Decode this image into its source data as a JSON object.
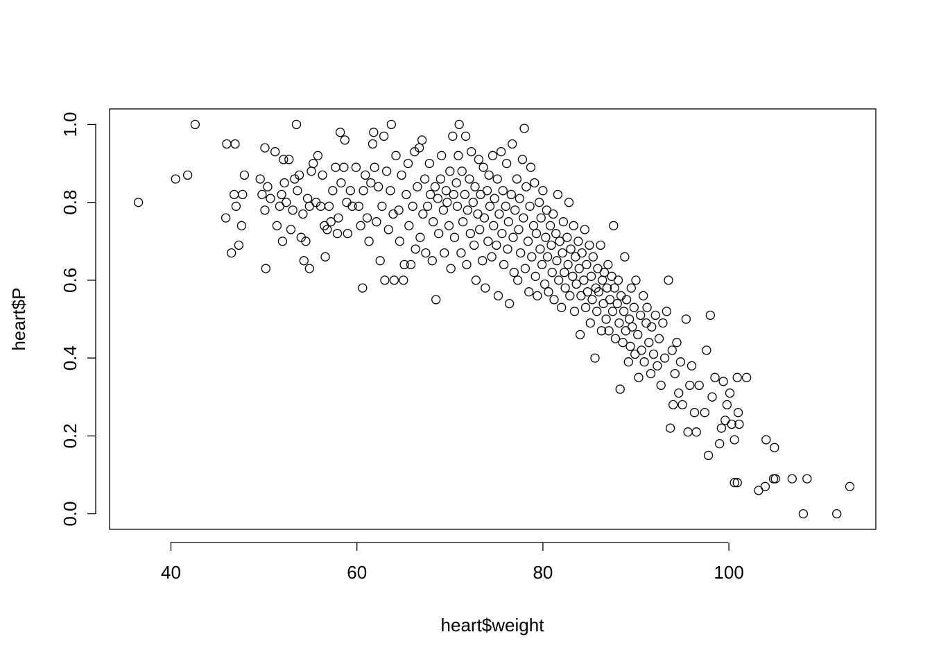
{
  "chart_data": {
    "type": "scatter",
    "title": "",
    "xlabel": "heart$weight",
    "ylabel": "heart$P",
    "xlim": [
      33.4,
      115.8
    ],
    "ylim": [
      -0.04,
      1.04
    ],
    "x_ticks": [
      40,
      60,
      80,
      100
    ],
    "y_ticks": [
      0.0,
      0.2,
      0.4,
      0.6,
      0.8,
      1.0
    ],
    "x_tick_labels": [
      "40",
      "60",
      "80",
      "100"
    ],
    "y_tick_labels": [
      "0.0",
      "0.2",
      "0.4",
      "0.6",
      "0.8",
      "1.0"
    ],
    "grid": false,
    "marker": "open-circle",
    "point_color": "#000000",
    "n_points_approx": 1000,
    "points": [
      [
        36.5,
        0.8
      ],
      [
        40.5,
        0.86
      ],
      [
        41.8,
        0.87
      ],
      [
        42.6,
        1.0
      ],
      [
        45.9,
        0.76
      ],
      [
        46.0,
        0.95
      ],
      [
        46.5,
        0.67
      ],
      [
        46.8,
        0.82
      ],
      [
        47.0,
        0.79
      ],
      [
        46.9,
        0.95
      ],
      [
        47.3,
        0.69
      ],
      [
        47.6,
        0.74
      ],
      [
        47.7,
        0.82
      ],
      [
        47.9,
        0.87
      ],
      [
        49.6,
        0.86
      ],
      [
        49.8,
        0.82
      ],
      [
        50.1,
        0.94
      ],
      [
        50.1,
        0.78
      ],
      [
        50.2,
        0.63
      ],
      [
        50.4,
        0.84
      ],
      [
        50.7,
        0.81
      ],
      [
        51.2,
        0.93
      ],
      [
        51.4,
        0.74
      ],
      [
        51.7,
        0.79
      ],
      [
        51.9,
        0.82
      ],
      [
        52.0,
        0.7
      ],
      [
        52.1,
        0.91
      ],
      [
        52.2,
        0.85
      ],
      [
        52.4,
        0.8
      ],
      [
        52.7,
        0.91
      ],
      [
        52.9,
        0.73
      ],
      [
        53.1,
        0.78
      ],
      [
        53.3,
        0.86
      ],
      [
        53.5,
        1.0
      ],
      [
        53.6,
        0.83
      ],
      [
        53.8,
        0.87
      ],
      [
        54.0,
        0.71
      ],
      [
        54.2,
        0.77
      ],
      [
        54.3,
        0.65
      ],
      [
        54.5,
        0.7
      ],
      [
        54.7,
        0.81
      ],
      [
        54.9,
        0.63
      ],
      [
        54.9,
        0.79
      ],
      [
        55.1,
        0.88
      ],
      [
        55.3,
        0.9
      ],
      [
        55.6,
        0.8
      ],
      [
        55.8,
        0.92
      ],
      [
        56.1,
        0.79
      ],
      [
        56.3,
        0.87
      ],
      [
        56.5,
        0.74
      ],
      [
        56.6,
        0.66
      ],
      [
        56.8,
        0.73
      ],
      [
        57.0,
        0.79
      ],
      [
        57.2,
        0.75
      ],
      [
        57.4,
        0.83
      ],
      [
        57.7,
        0.89
      ],
      [
        57.9,
        0.72
      ],
      [
        58.0,
        0.76
      ],
      [
        58.2,
        0.98
      ],
      [
        58.3,
        0.85
      ],
      [
        58.6,
        0.89
      ],
      [
        58.7,
        0.96
      ],
      [
        58.9,
        0.8
      ],
      [
        59.0,
        0.72
      ],
      [
        59.3,
        0.83
      ],
      [
        59.5,
        0.79
      ],
      [
        59.9,
        0.89
      ],
      [
        60.2,
        0.79
      ],
      [
        60.4,
        0.74
      ],
      [
        60.6,
        0.58
      ],
      [
        60.7,
        0.83
      ],
      [
        60.9,
        0.87
      ],
      [
        61.1,
        0.76
      ],
      [
        61.3,
        0.7
      ],
      [
        61.5,
        0.85
      ],
      [
        61.7,
        0.95
      ],
      [
        61.8,
        0.98
      ],
      [
        61.9,
        0.89
      ],
      [
        62.1,
        0.75
      ],
      [
        62.3,
        0.84
      ],
      [
        62.5,
        0.65
      ],
      [
        62.7,
        0.79
      ],
      [
        62.9,
        0.97
      ],
      [
        63.0,
        0.6
      ],
      [
        63.2,
        0.88
      ],
      [
        63.4,
        0.73
      ],
      [
        63.6,
        0.83
      ],
      [
        63.7,
        1.0
      ],
      [
        63.9,
        0.77
      ],
      [
        64.0,
        0.6
      ],
      [
        64.2,
        0.92
      ],
      [
        64.5,
        0.78
      ],
      [
        64.6,
        0.7
      ],
      [
        64.8,
        0.87
      ],
      [
        65.0,
        0.6
      ],
      [
        65.1,
        0.64
      ],
      [
        65.3,
        0.82
      ],
      [
        65.5,
        0.9
      ],
      [
        65.6,
        0.74
      ],
      [
        65.8,
        0.64
      ],
      [
        66.0,
        0.79
      ],
      [
        66.2,
        0.93
      ],
      [
        66.3,
        0.68
      ],
      [
        66.5,
        0.84
      ],
      [
        66.7,
        0.94
      ],
      [
        66.8,
        0.71
      ],
      [
        67.0,
        0.96
      ],
      [
        67.1,
        0.77
      ],
      [
        67.3,
        0.86
      ],
      [
        67.4,
        0.67
      ],
      [
        67.6,
        0.79
      ],
      [
        67.8,
        0.9
      ],
      [
        67.9,
        0.82
      ],
      [
        68.1,
        0.65
      ],
      [
        68.2,
        0.75
      ],
      [
        68.4,
        0.84
      ],
      [
        68.5,
        0.55
      ],
      [
        68.7,
        0.81
      ],
      [
        68.8,
        0.72
      ],
      [
        69.0,
        0.86
      ],
      [
        69.1,
        0.92
      ],
      [
        69.3,
        0.78
      ],
      [
        69.4,
        0.67
      ],
      [
        69.6,
        0.83
      ],
      [
        69.7,
        0.8
      ],
      [
        69.9,
        0.74
      ],
      [
        70.0,
        0.88
      ],
      [
        70.1,
        0.63
      ],
      [
        70.3,
        0.97
      ],
      [
        70.4,
        0.82
      ],
      [
        70.5,
        0.71
      ],
      [
        70.7,
        0.85
      ],
      [
        70.8,
        0.79
      ],
      [
        70.9,
        0.92
      ],
      [
        71.0,
        1.0
      ],
      [
        71.2,
        0.67
      ],
      [
        71.3,
        0.88
      ],
      [
        71.4,
        0.75
      ],
      [
        71.6,
        0.82
      ],
      [
        71.7,
        0.97
      ],
      [
        71.8,
        0.64
      ],
      [
        71.9,
        0.78
      ],
      [
        72.1,
        0.86
      ],
      [
        72.2,
        0.72
      ],
      [
        72.3,
        0.93
      ],
      [
        72.5,
        0.8
      ],
      [
        72.6,
        0.69
      ],
      [
        72.7,
        0.84
      ],
      [
        72.8,
        0.6
      ],
      [
        73.0,
        0.77
      ],
      [
        73.1,
        0.91
      ],
      [
        73.2,
        0.73
      ],
      [
        73.3,
        0.82
      ],
      [
        73.5,
        0.65
      ],
      [
        73.6,
        0.89
      ],
      [
        73.7,
        0.76
      ],
      [
        73.8,
        0.58
      ],
      [
        74.0,
        0.83
      ],
      [
        74.1,
        0.7
      ],
      [
        74.2,
        0.87
      ],
      [
        74.3,
        0.79
      ],
      [
        74.5,
        0.66
      ],
      [
        74.6,
        0.92
      ],
      [
        74.7,
        0.74
      ],
      [
        74.8,
        0.81
      ],
      [
        75.0,
        0.69
      ],
      [
        75.1,
        0.86
      ],
      [
        75.2,
        0.56
      ],
      [
        75.3,
        0.77
      ],
      [
        75.5,
        0.93
      ],
      [
        75.6,
        0.72
      ],
      [
        75.7,
        0.83
      ],
      [
        75.8,
        0.64
      ],
      [
        76.0,
        0.79
      ],
      [
        76.1,
        0.9
      ],
      [
        76.2,
        0.68
      ],
      [
        76.3,
        0.75
      ],
      [
        76.4,
        0.54
      ],
      [
        76.6,
        0.82
      ],
      [
        76.7,
        0.95
      ],
      [
        76.8,
        0.71
      ],
      [
        76.9,
        0.62
      ],
      [
        77.0,
        0.78
      ],
      [
        77.2,
        0.86
      ],
      [
        77.3,
        0.6
      ],
      [
        77.4,
        0.73
      ],
      [
        77.5,
        0.81
      ],
      [
        77.6,
        0.67
      ],
      [
        77.8,
        0.91
      ],
      [
        77.9,
        0.76
      ],
      [
        78.0,
        0.99
      ],
      [
        78.1,
        0.63
      ],
      [
        78.2,
        0.84
      ],
      [
        78.4,
        0.7
      ],
      [
        78.5,
        0.57
      ],
      [
        78.6,
        0.79
      ],
      [
        78.7,
        0.89
      ],
      [
        78.8,
        0.66
      ],
      [
        79.0,
        0.74
      ],
      [
        79.1,
        0.85
      ],
      [
        79.2,
        0.61
      ],
      [
        79.3,
        0.72
      ],
      [
        79.4,
        0.56
      ],
      [
        79.6,
        0.8
      ],
      [
        79.7,
        0.68
      ],
      [
        79.8,
        0.76
      ],
      [
        79.9,
        0.64
      ],
      [
        80.0,
        0.83
      ],
      [
        80.2,
        0.59
      ],
      [
        80.3,
        0.71
      ],
      [
        80.4,
        0.78
      ],
      [
        80.5,
        0.66
      ],
      [
        80.6,
        0.57
      ],
      [
        80.8,
        0.74
      ],
      [
        80.9,
        0.69
      ],
      [
        81.0,
        0.62
      ],
      [
        81.1,
        0.77
      ],
      [
        81.2,
        0.55
      ],
      [
        81.4,
        0.72
      ],
      [
        81.5,
        0.65
      ],
      [
        81.6,
        0.82
      ],
      [
        81.7,
        0.6
      ],
      [
        81.8,
        0.7
      ],
      [
        82.0,
        0.53
      ],
      [
        82.1,
        0.67
      ],
      [
        82.2,
        0.75
      ],
      [
        82.3,
        0.62
      ],
      [
        82.4,
        0.58
      ],
      [
        82.6,
        0.71
      ],
      [
        82.7,
        0.64
      ],
      [
        82.8,
        0.8
      ],
      [
        82.9,
        0.56
      ],
      [
        83.0,
        0.68
      ],
      [
        83.2,
        0.61
      ],
      [
        83.3,
        0.74
      ],
      [
        83.4,
        0.52
      ],
      [
        83.5,
        0.66
      ],
      [
        83.6,
        0.59
      ],
      [
        83.8,
        0.7
      ],
      [
        83.9,
        0.63
      ],
      [
        84.0,
        0.46
      ],
      [
        84.1,
        0.56
      ],
      [
        84.2,
        0.67
      ],
      [
        84.4,
        0.6
      ],
      [
        84.5,
        0.73
      ],
      [
        84.6,
        0.53
      ],
      [
        84.7,
        0.64
      ],
      [
        84.8,
        0.57
      ],
      [
        85.0,
        0.69
      ],
      [
        85.1,
        0.49
      ],
      [
        85.2,
        0.61
      ],
      [
        85.3,
        0.55
      ],
      [
        85.4,
        0.66
      ],
      [
        85.6,
        0.4
      ],
      [
        85.7,
        0.58
      ],
      [
        85.8,
        0.52
      ],
      [
        85.9,
        0.63
      ],
      [
        86.0,
        0.57
      ],
      [
        86.2,
        0.69
      ],
      [
        86.3,
        0.47
      ],
      [
        86.4,
        0.6
      ],
      [
        86.5,
        0.54
      ],
      [
        86.6,
        0.62
      ],
      [
        86.8,
        0.5
      ],
      [
        86.9,
        0.58
      ],
      [
        87.0,
        0.64
      ],
      [
        87.1,
        0.47
      ],
      [
        87.2,
        0.55
      ],
      [
        87.4,
        0.61
      ],
      [
        87.5,
        0.52
      ],
      [
        87.6,
        0.74
      ],
      [
        87.7,
        0.58
      ],
      [
        87.8,
        0.45
      ],
      [
        88.0,
        0.54
      ],
      [
        88.1,
        0.6
      ],
      [
        88.2,
        0.49
      ],
      [
        88.3,
        0.32
      ],
      [
        88.4,
        0.56
      ],
      [
        88.6,
        0.44
      ],
      [
        88.7,
        0.52
      ],
      [
        88.8,
        0.66
      ],
      [
        88.9,
        0.47
      ],
      [
        89.0,
        0.55
      ],
      [
        89.2,
        0.39
      ],
      [
        89.3,
        0.5
      ],
      [
        89.4,
        0.43
      ],
      [
        89.5,
        0.58
      ],
      [
        89.6,
        0.48
      ],
      [
        89.8,
        0.53
      ],
      [
        89.9,
        0.41
      ],
      [
        90.0,
        0.6
      ],
      [
        90.2,
        0.46
      ],
      [
        90.3,
        0.35
      ],
      [
        90.5,
        0.51
      ],
      [
        90.6,
        0.42
      ],
      [
        90.8,
        0.56
      ],
      [
        90.9,
        0.39
      ],
      [
        91.1,
        0.49
      ],
      [
        91.2,
        0.53
      ],
      [
        91.4,
        0.44
      ],
      [
        91.6,
        0.36
      ],
      [
        91.7,
        0.48
      ],
      [
        91.9,
        0.41
      ],
      [
        92.1,
        0.51
      ],
      [
        92.3,
        0.38
      ],
      [
        92.5,
        0.45
      ],
      [
        92.7,
        0.33
      ],
      [
        92.9,
        0.49
      ],
      [
        93.1,
        0.4
      ],
      [
        93.3,
        0.52
      ],
      [
        93.5,
        0.6
      ],
      [
        93.7,
        0.22
      ],
      [
        93.9,
        0.42
      ],
      [
        94.0,
        0.28
      ],
      [
        94.2,
        0.36
      ],
      [
        94.4,
        0.44
      ],
      [
        94.6,
        0.31
      ],
      [
        94.8,
        0.39
      ],
      [
        95.0,
        0.28
      ],
      [
        95.4,
        0.5
      ],
      [
        95.6,
        0.21
      ],
      [
        95.8,
        0.33
      ],
      [
        96.0,
        0.38
      ],
      [
        96.3,
        0.26
      ],
      [
        96.5,
        0.21
      ],
      [
        96.8,
        0.33
      ],
      [
        97.4,
        0.26
      ],
      [
        97.6,
        0.42
      ],
      [
        97.8,
        0.15
      ],
      [
        98.0,
        0.51
      ],
      [
        98.2,
        0.3
      ],
      [
        98.5,
        0.35
      ],
      [
        99.0,
        0.18
      ],
      [
        99.2,
        0.22
      ],
      [
        99.4,
        0.34
      ],
      [
        99.6,
        0.24
      ],
      [
        99.8,
        0.28
      ],
      [
        100.1,
        0.31
      ],
      [
        100.3,
        0.23
      ],
      [
        100.6,
        0.19
      ],
      [
        100.6,
        0.08
      ],
      [
        100.9,
        0.08
      ],
      [
        100.9,
        0.35
      ],
      [
        101.0,
        0.26
      ],
      [
        101.1,
        0.23
      ],
      [
        101.9,
        0.35
      ],
      [
        103.2,
        0.06
      ],
      [
        103.9,
        0.07
      ],
      [
        104.0,
        0.19
      ],
      [
        104.8,
        0.09
      ],
      [
        104.9,
        0.17
      ],
      [
        105.0,
        0.09
      ],
      [
        106.8,
        0.09
      ],
      [
        108.0,
        0.0
      ],
      [
        108.4,
        0.09
      ],
      [
        111.6,
        0.0
      ],
      [
        113.0,
        0.07
      ]
    ]
  }
}
